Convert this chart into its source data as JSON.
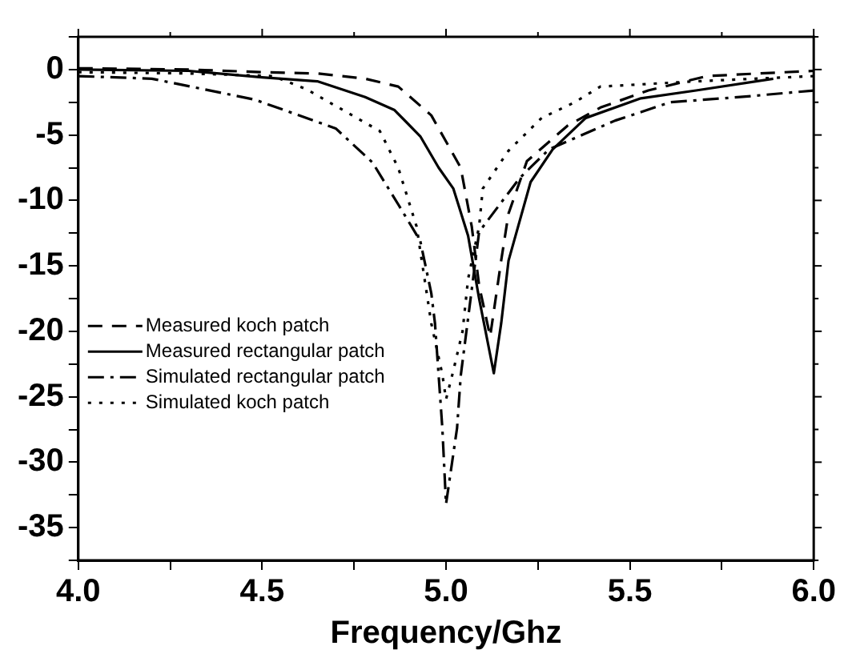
{
  "chart_data": {
    "type": "line",
    "xlabel": "Frequency/Ghz",
    "xlim": [
      4.0,
      6.0
    ],
    "ylim": [
      -37.5,
      2.5
    ],
    "xticks": [
      {
        "value": 4.0,
        "label": "4.0"
      },
      {
        "value": 4.25,
        "label": null
      },
      {
        "value": 4.5,
        "label": "4.5"
      },
      {
        "value": 4.75,
        "label": null
      },
      {
        "value": 5.0,
        "label": "5.0"
      },
      {
        "value": 5.25,
        "label": null
      },
      {
        "value": 5.5,
        "label": "5.5"
      },
      {
        "value": 5.75,
        "label": null
      },
      {
        "value": 6.0,
        "label": "6.0"
      }
    ],
    "yticks": [
      {
        "value": -37.5,
        "label": null
      },
      -35,
      {
        "value": -32.5,
        "label": null
      },
      -30,
      {
        "value": -27.5,
        "label": null
      },
      -25,
      {
        "value": -22.5,
        "label": null
      },
      -20,
      {
        "value": -17.5,
        "label": null
      },
      -15,
      {
        "value": -12.5,
        "label": null
      },
      -10,
      {
        "value": -7.5,
        "label": null
      },
      -5,
      {
        "value": -2.5,
        "label": null
      },
      0,
      {
        "value": 2.5,
        "label": null
      }
    ],
    "grid": false,
    "legend": "left",
    "marker": "none",
    "series": [
      {
        "name": "Measured koch patch",
        "color": "#000000",
        "line_style": "dashed",
        "x": [
          4.0,
          4.3,
          4.5,
          4.65,
          4.78,
          4.87,
          4.96,
          5.0,
          5.04,
          5.07,
          5.09,
          5.12,
          5.15,
          5.17,
          5.22,
          5.33,
          5.42,
          5.55,
          5.71,
          5.85,
          6.0
        ],
        "values": [
          0.1,
          0.0,
          -0.2,
          -0.3,
          -0.7,
          -1.3,
          -3.5,
          -5.5,
          -7.5,
          -12,
          -16.5,
          -20.4,
          -14.6,
          -11,
          -7,
          -4.3,
          -2.9,
          -1.6,
          -0.5,
          -0.3,
          -0.1
        ]
      },
      {
        "name": "Measured rectangular patch",
        "color": "#000000",
        "line_style": "solid",
        "x": [
          4.0,
          4.3,
          4.5,
          4.65,
          4.78,
          4.86,
          4.93,
          4.98,
          5.02,
          5.06,
          5.09,
          5.13,
          5.15,
          5.17,
          5.23,
          5.29,
          5.38,
          5.53,
          5.68,
          5.89
        ],
        "values": [
          0.0,
          -0.1,
          -0.6,
          -0.9,
          -2.1,
          -3.1,
          -5.1,
          -7.5,
          -9.1,
          -12.7,
          -17.5,
          -23.2,
          -19.4,
          -14.6,
          -8.6,
          -6.1,
          -3.7,
          -2.2,
          -1.6,
          -0.7
        ]
      },
      {
        "name": "Simulated rectangular patch",
        "color": "#000000",
        "line_style": "dashdot",
        "x": [
          4.0,
          4.2,
          4.48,
          4.7,
          4.8,
          4.87,
          4.93,
          4.96,
          4.97,
          4.99,
          5.0,
          5.03,
          5.04,
          5.09,
          5.2,
          5.28,
          5.46,
          5.61,
          5.8,
          6.0
        ],
        "values": [
          -0.5,
          -0.7,
          -2.3,
          -4.5,
          -7.1,
          -10.3,
          -13.1,
          -17.1,
          -19.4,
          -27.4,
          -33.2,
          -27.4,
          -23.4,
          -12.4,
          -8.3,
          -6.1,
          -3.9,
          -2.5,
          -2.1,
          -1.6
        ]
      },
      {
        "name": "Simulated koch patch",
        "color": "#000000",
        "line_style": "dotted",
        "x": [
          4.0,
          4.3,
          4.53,
          4.62,
          4.72,
          4.82,
          4.87,
          4.92,
          4.96,
          4.99,
          5.0,
          5.02,
          5.045,
          5.06,
          5.09,
          5.1,
          5.17,
          5.26,
          5.35,
          5.42,
          5.68,
          6.0
        ],
        "values": [
          -0.2,
          -0.3,
          -0.5,
          -1.5,
          -3.1,
          -4.7,
          -7.5,
          -12,
          -19.4,
          -23.3,
          -25.2,
          -23,
          -20,
          -16,
          -12,
          -9.1,
          -6.2,
          -3.7,
          -2.5,
          -1.3,
          -0.9,
          -0.5
        ]
      }
    ]
  }
}
